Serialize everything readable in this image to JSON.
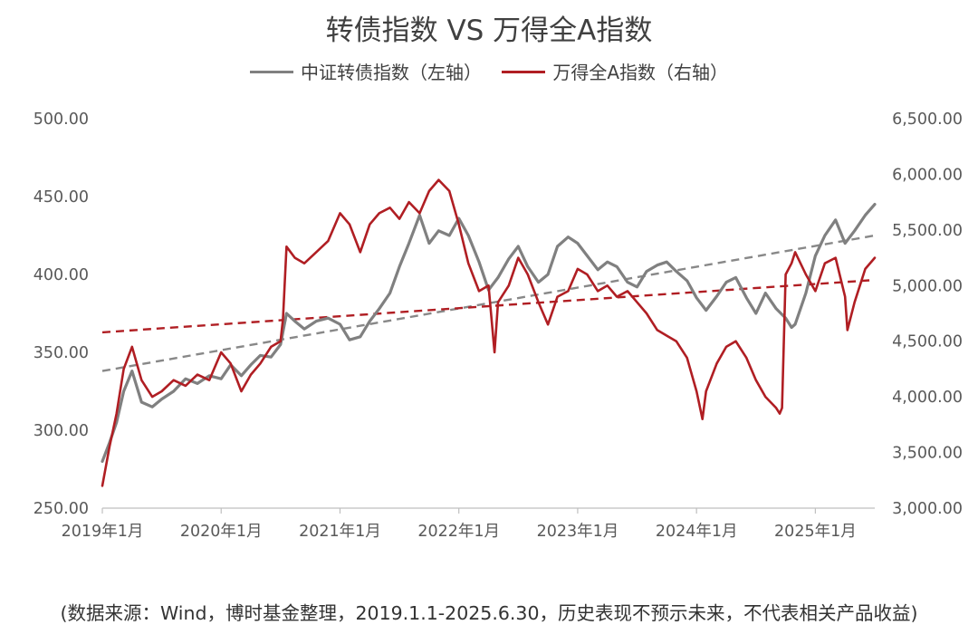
{
  "chart_data": {
    "type": "line",
    "title": "转债指数 VS 万得全A指数",
    "source_note": "(数据来源：Wind，博时基金整理，2019.1.1-2025.6.30，历史表现不预示未来，不代表相关产品收益)",
    "x_tick_labels": [
      "2019年1月",
      "2020年1月",
      "2021年1月",
      "2022年1月",
      "2023年1月",
      "2024年1月",
      "2025年1月"
    ],
    "x_tick_dates": [
      2019.0,
      2020.0,
      2021.0,
      2022.0,
      2023.0,
      2024.0,
      2025.0
    ],
    "xlim": [
      2019.0,
      2025.5
    ],
    "y_left": {
      "ylim": [
        250,
        500
      ],
      "ticks": [
        "250.00",
        "300.00",
        "350.00",
        "400.00",
        "450.00",
        "500.00"
      ]
    },
    "y_right": {
      "ylim": [
        3000,
        6500
      ],
      "ticks": [
        "3,000.00",
        "3,500.00",
        "4,000.00",
        "4,500.00",
        "5,000.00",
        "5,500.00",
        "6,000.00",
        "6,500.00"
      ]
    },
    "grid": false,
    "legend_position": "top-center",
    "series": [
      {
        "name": "中证转债指数（左轴）",
        "axis": "left",
        "color": "#808080",
        "x": [
          2019.0,
          2019.06,
          2019.12,
          2019.18,
          2019.25,
          2019.33,
          2019.42,
          2019.5,
          2019.6,
          2019.7,
          2019.8,
          2019.9,
          2020.0,
          2020.08,
          2020.17,
          2020.25,
          2020.33,
          2020.42,
          2020.5,
          2020.55,
          2020.62,
          2020.7,
          2020.8,
          2020.9,
          2021.0,
          2021.08,
          2021.17,
          2021.25,
          2021.33,
          2021.42,
          2021.5,
          2021.58,
          2021.67,
          2021.75,
          2021.83,
          2021.92,
          2022.0,
          2022.08,
          2022.17,
          2022.25,
          2022.33,
          2022.42,
          2022.5,
          2022.58,
          2022.67,
          2022.75,
          2022.83,
          2022.92,
          2023.0,
          2023.08,
          2023.17,
          2023.25,
          2023.33,
          2023.42,
          2023.5,
          2023.58,
          2023.67,
          2023.75,
          2023.83,
          2023.92,
          2024.0,
          2024.08,
          2024.17,
          2024.25,
          2024.33,
          2024.42,
          2024.5,
          2024.58,
          2024.67,
          2024.75,
          2024.8,
          2024.83,
          2024.92,
          2025.0,
          2025.08,
          2025.17,
          2025.25,
          2025.33,
          2025.42,
          2025.5
        ],
        "values": [
          280,
          292,
          305,
          325,
          338,
          318,
          315,
          320,
          325,
          333,
          330,
          335,
          333,
          342,
          335,
          342,
          348,
          347,
          355,
          375,
          370,
          365,
          370,
          372,
          368,
          358,
          360,
          370,
          378,
          388,
          405,
          420,
          438,
          420,
          428,
          425,
          436,
          425,
          408,
          390,
          398,
          410,
          418,
          405,
          395,
          400,
          418,
          424,
          420,
          412,
          403,
          408,
          405,
          395,
          392,
          402,
          406,
          408,
          402,
          396,
          385,
          377,
          386,
          395,
          398,
          385,
          375,
          388,
          378,
          372,
          366,
          368,
          388,
          412,
          425,
          435,
          420,
          428,
          438,
          445
        ]
      },
      {
        "name": "万得全A指数（右轴）",
        "axis": "right",
        "color": "#b01e23",
        "x": [
          2019.0,
          2019.06,
          2019.12,
          2019.18,
          2019.25,
          2019.33,
          2019.42,
          2019.5,
          2019.6,
          2019.7,
          2019.8,
          2019.9,
          2020.0,
          2020.08,
          2020.17,
          2020.25,
          2020.33,
          2020.42,
          2020.5,
          2020.52,
          2020.55,
          2020.62,
          2020.7,
          2020.8,
          2020.9,
          2021.0,
          2021.08,
          2021.17,
          2021.25,
          2021.33,
          2021.42,
          2021.5,
          2021.58,
          2021.67,
          2021.75,
          2021.83,
          2021.92,
          2022.0,
          2022.08,
          2022.17,
          2022.25,
          2022.3,
          2022.33,
          2022.42,
          2022.5,
          2022.58,
          2022.67,
          2022.75,
          2022.83,
          2022.92,
          2023.0,
          2023.08,
          2023.17,
          2023.25,
          2023.33,
          2023.42,
          2023.5,
          2023.58,
          2023.67,
          2023.75,
          2023.83,
          2023.92,
          2024.0,
          2024.05,
          2024.08,
          2024.17,
          2024.25,
          2024.33,
          2024.42,
          2024.5,
          2024.58,
          2024.67,
          2024.7,
          2024.72,
          2024.75,
          2024.8,
          2024.83,
          2024.92,
          2025.0,
          2025.08,
          2025.17,
          2025.25,
          2025.27,
          2025.33,
          2025.42,
          2025.5
        ],
        "values": [
          3200,
          3550,
          3850,
          4250,
          4450,
          4150,
          4000,
          4050,
          4150,
          4100,
          4200,
          4150,
          4400,
          4300,
          4050,
          4200,
          4300,
          4450,
          4500,
          4700,
          5350,
          5250,
          5200,
          5300,
          5400,
          5650,
          5550,
          5300,
          5550,
          5650,
          5700,
          5600,
          5750,
          5650,
          5850,
          5950,
          5850,
          5550,
          5200,
          4950,
          5000,
          4400,
          4850,
          5000,
          5250,
          5100,
          4850,
          4650,
          4900,
          4950,
          5150,
          5100,
          4950,
          5000,
          4900,
          4950,
          4850,
          4750,
          4600,
          4550,
          4500,
          4350,
          4050,
          3800,
          4050,
          4300,
          4450,
          4500,
          4350,
          4150,
          4000,
          3900,
          3850,
          3900,
          5100,
          5200,
          5300,
          5100,
          4950,
          5200,
          5250,
          4900,
          4600,
          4850,
          5150,
          5250
        ]
      },
      {
        "name": "中证转债指数趋势线",
        "axis": "left",
        "color": "#888888",
        "style": "dashed",
        "x": [
          2019.0,
          2025.5
        ],
        "values": [
          338,
          425
        ]
      },
      {
        "name": "万得全A指数趋势线",
        "axis": "right",
        "color": "#b01e23",
        "style": "dashed",
        "x": [
          2019.0,
          2025.5
        ],
        "values": [
          4580,
          5050
        ]
      }
    ],
    "legend": [
      {
        "label": "中证转债指数（左轴）",
        "color": "#808080"
      },
      {
        "label": "万得全A指数（右轴）",
        "color": "#b01e23"
      }
    ]
  }
}
